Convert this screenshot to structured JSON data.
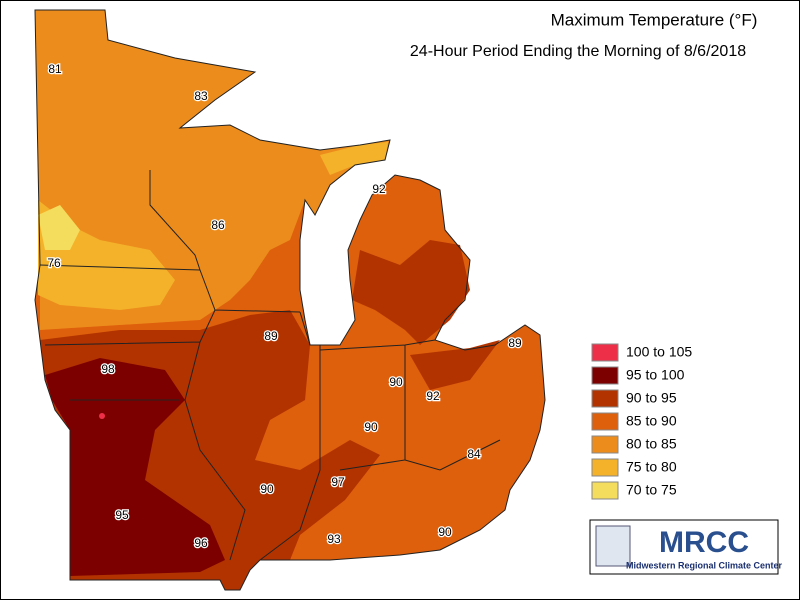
{
  "title": "Maximum Temperature (°F)",
  "subtitle": "24-Hour Period Ending the Morning of 8/6/2018",
  "legend": [
    {
      "label": "100 to 105",
      "color": "#ee2f48"
    },
    {
      "label": "95 to 100",
      "color": "#7d0000"
    },
    {
      "label": "90 to 95",
      "color": "#b23300"
    },
    {
      "label": "85 to 90",
      "color": "#de5f0c"
    },
    {
      "label": "80 to 85",
      "color": "#ec8c1c"
    },
    {
      "label": "75 to 80",
      "color": "#f4b22a"
    },
    {
      "label": "70 to 75",
      "color": "#f4dc5c"
    }
  ],
  "stations": [
    81,
    83,
    76,
    86,
    92,
    89,
    98,
    90,
    92,
    89,
    90,
    84,
    97,
    90,
    95,
    96,
    93,
    90
  ],
  "logo": {
    "name": "MRCC",
    "caption": "Midwestern Regional Climate Center"
  }
}
